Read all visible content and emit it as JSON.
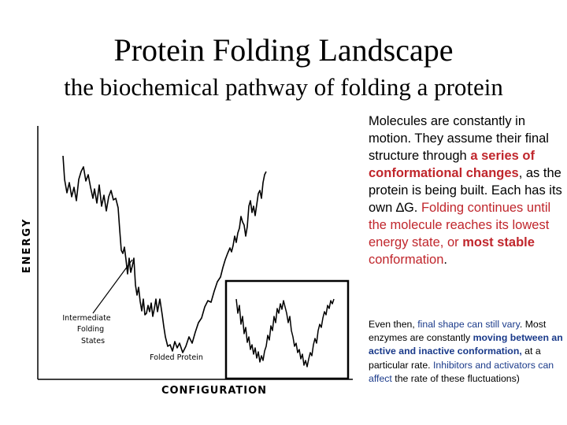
{
  "slide": {
    "title": "Protein Folding Landscape",
    "subtitle": "the biochemical pathway of folding a protein"
  },
  "diagram": {
    "y_axis_label": "ENERGY",
    "x_axis_label": "CONFIGURATION",
    "intermediate_label": [
      "Intermediate",
      "Folding",
      "States"
    ],
    "folded_label": "Folded Protein"
  },
  "paragraph1": {
    "p1": "Molecules are constantly in motion.  They assume their final structure through ",
    "p2": "a series of conformational changes",
    "p3": ", as the protein is being built. Each has its own ",
    "p4": "∆G",
    "p5": ". ",
    "p6": "Folding continues until the molecule reaches its lowest energy state, or ",
    "p7": "most stable",
    "p8": " conformation",
    "p9": "."
  },
  "paragraph2": {
    "p1": "Even then, ",
    "p2": "final shape can still vary",
    "p3": ". Most enzymes are constantly ",
    "p4": "moving between an active and inactive conformation,",
    "p5": " at a particular rate. ",
    "p6": "Inhibitors and activators can affect",
    "p7": " the rate of these fluctuations)"
  }
}
